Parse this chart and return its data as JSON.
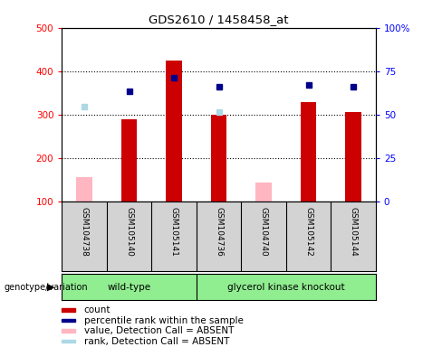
{
  "title": "GDS2610 / 1458458_at",
  "samples": [
    "GSM104738",
    "GSM105140",
    "GSM105141",
    "GSM104736",
    "GSM104740",
    "GSM105142",
    "GSM105144"
  ],
  "count_values": [
    null,
    288,
    425,
    300,
    null,
    328,
    305
  ],
  "count_absent_values": [
    155,
    null,
    null,
    null,
    143,
    null,
    null
  ],
  "percentile_values": [
    null,
    353,
    385,
    365,
    null,
    368,
    365
  ],
  "rank_absent_values": [
    318,
    null,
    null,
    305,
    null,
    null,
    null
  ],
  "ylim_left": [
    100,
    500
  ],
  "ylim_right": [
    0,
    100
  ],
  "left_ticks": [
    100,
    200,
    300,
    400,
    500
  ],
  "right_ticks": [
    0,
    25,
    50,
    75,
    100
  ],
  "right_tick_labels": [
    "0",
    "25",
    "50",
    "75",
    "100%"
  ],
  "bar_color": "#CC0000",
  "absent_bar_color": "#FFB6C1",
  "percentile_color": "#00008B",
  "rank_absent_color": "#ADD8E6",
  "sample_bg_color": "#D3D3D3",
  "group_bg_color": "#90EE90",
  "wt_label": "wild-type",
  "gk_label": "glycerol kinase knockout",
  "legend_items": [
    [
      "#CC0000",
      "count"
    ],
    [
      "#00008B",
      "percentile rank within the sample"
    ],
    [
      "#FFB6C1",
      "value, Detection Call = ABSENT"
    ],
    [
      "#ADD8E6",
      "rank, Detection Call = ABSENT"
    ]
  ],
  "n_wt": 3,
  "n_gk": 4,
  "bar_width": 0.35
}
